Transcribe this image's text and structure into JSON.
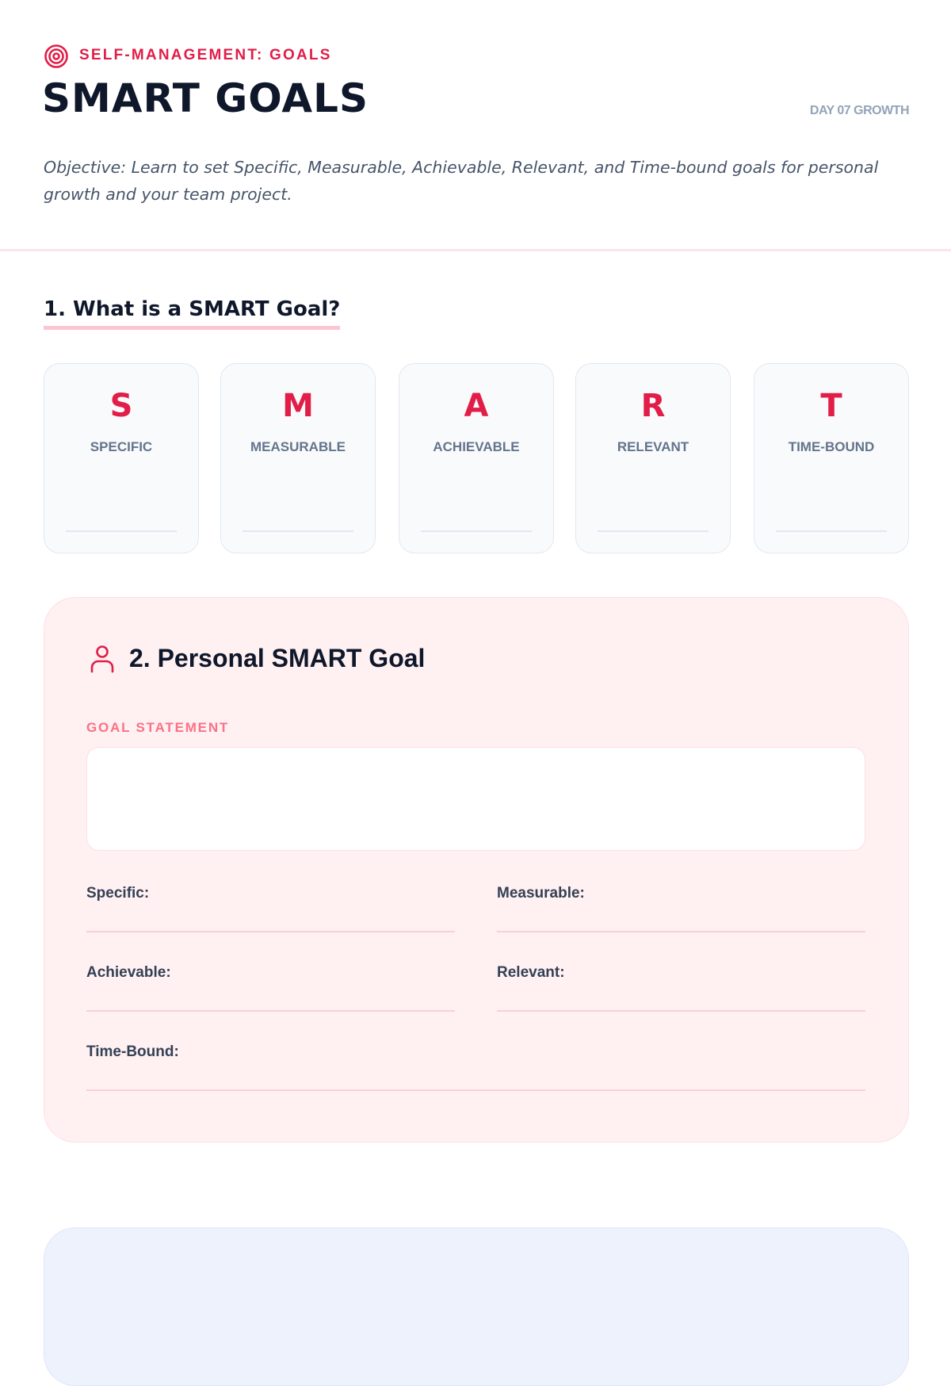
{
  "header": {
    "eyebrow_icon": "target-icon",
    "eyebrow": "SELF-MANAGEMENT: GOALS",
    "title": "SMART GOALS",
    "day_tag": "DAY 07 GROWTH",
    "objective": "Objective: Learn to set Specific, Measurable, Achievable, Relevant, and Time-bound goals for personal growth and your team project."
  },
  "section1": {
    "heading": "1. What is a SMART Goal?",
    "cards": [
      {
        "letter": "S",
        "label": "SPECIFIC"
      },
      {
        "letter": "M",
        "label": "MEASURABLE"
      },
      {
        "letter": "A",
        "label": "ACHIEVABLE"
      },
      {
        "letter": "R",
        "label": "RELEVANT"
      },
      {
        "letter": "T",
        "label": "TIME-BOUND"
      }
    ]
  },
  "section2": {
    "icon": "user-icon",
    "heading": "2. Personal SMART Goal",
    "goal_statement_label": "GOAL STATEMENT",
    "goal_statement_value": "",
    "fields": [
      {
        "label": "Specific:",
        "value": ""
      },
      {
        "label": "Measurable:",
        "value": ""
      },
      {
        "label": "Achievable:",
        "value": ""
      },
      {
        "label": "Relevant:",
        "value": ""
      },
      {
        "label": "Time-Bound:",
        "value": ""
      }
    ]
  },
  "colors": {
    "accent": "#e11d48",
    "panel_pink": "#fff0f2",
    "panel_blue": "#eef2fd",
    "card_bg": "#f8fafc"
  }
}
